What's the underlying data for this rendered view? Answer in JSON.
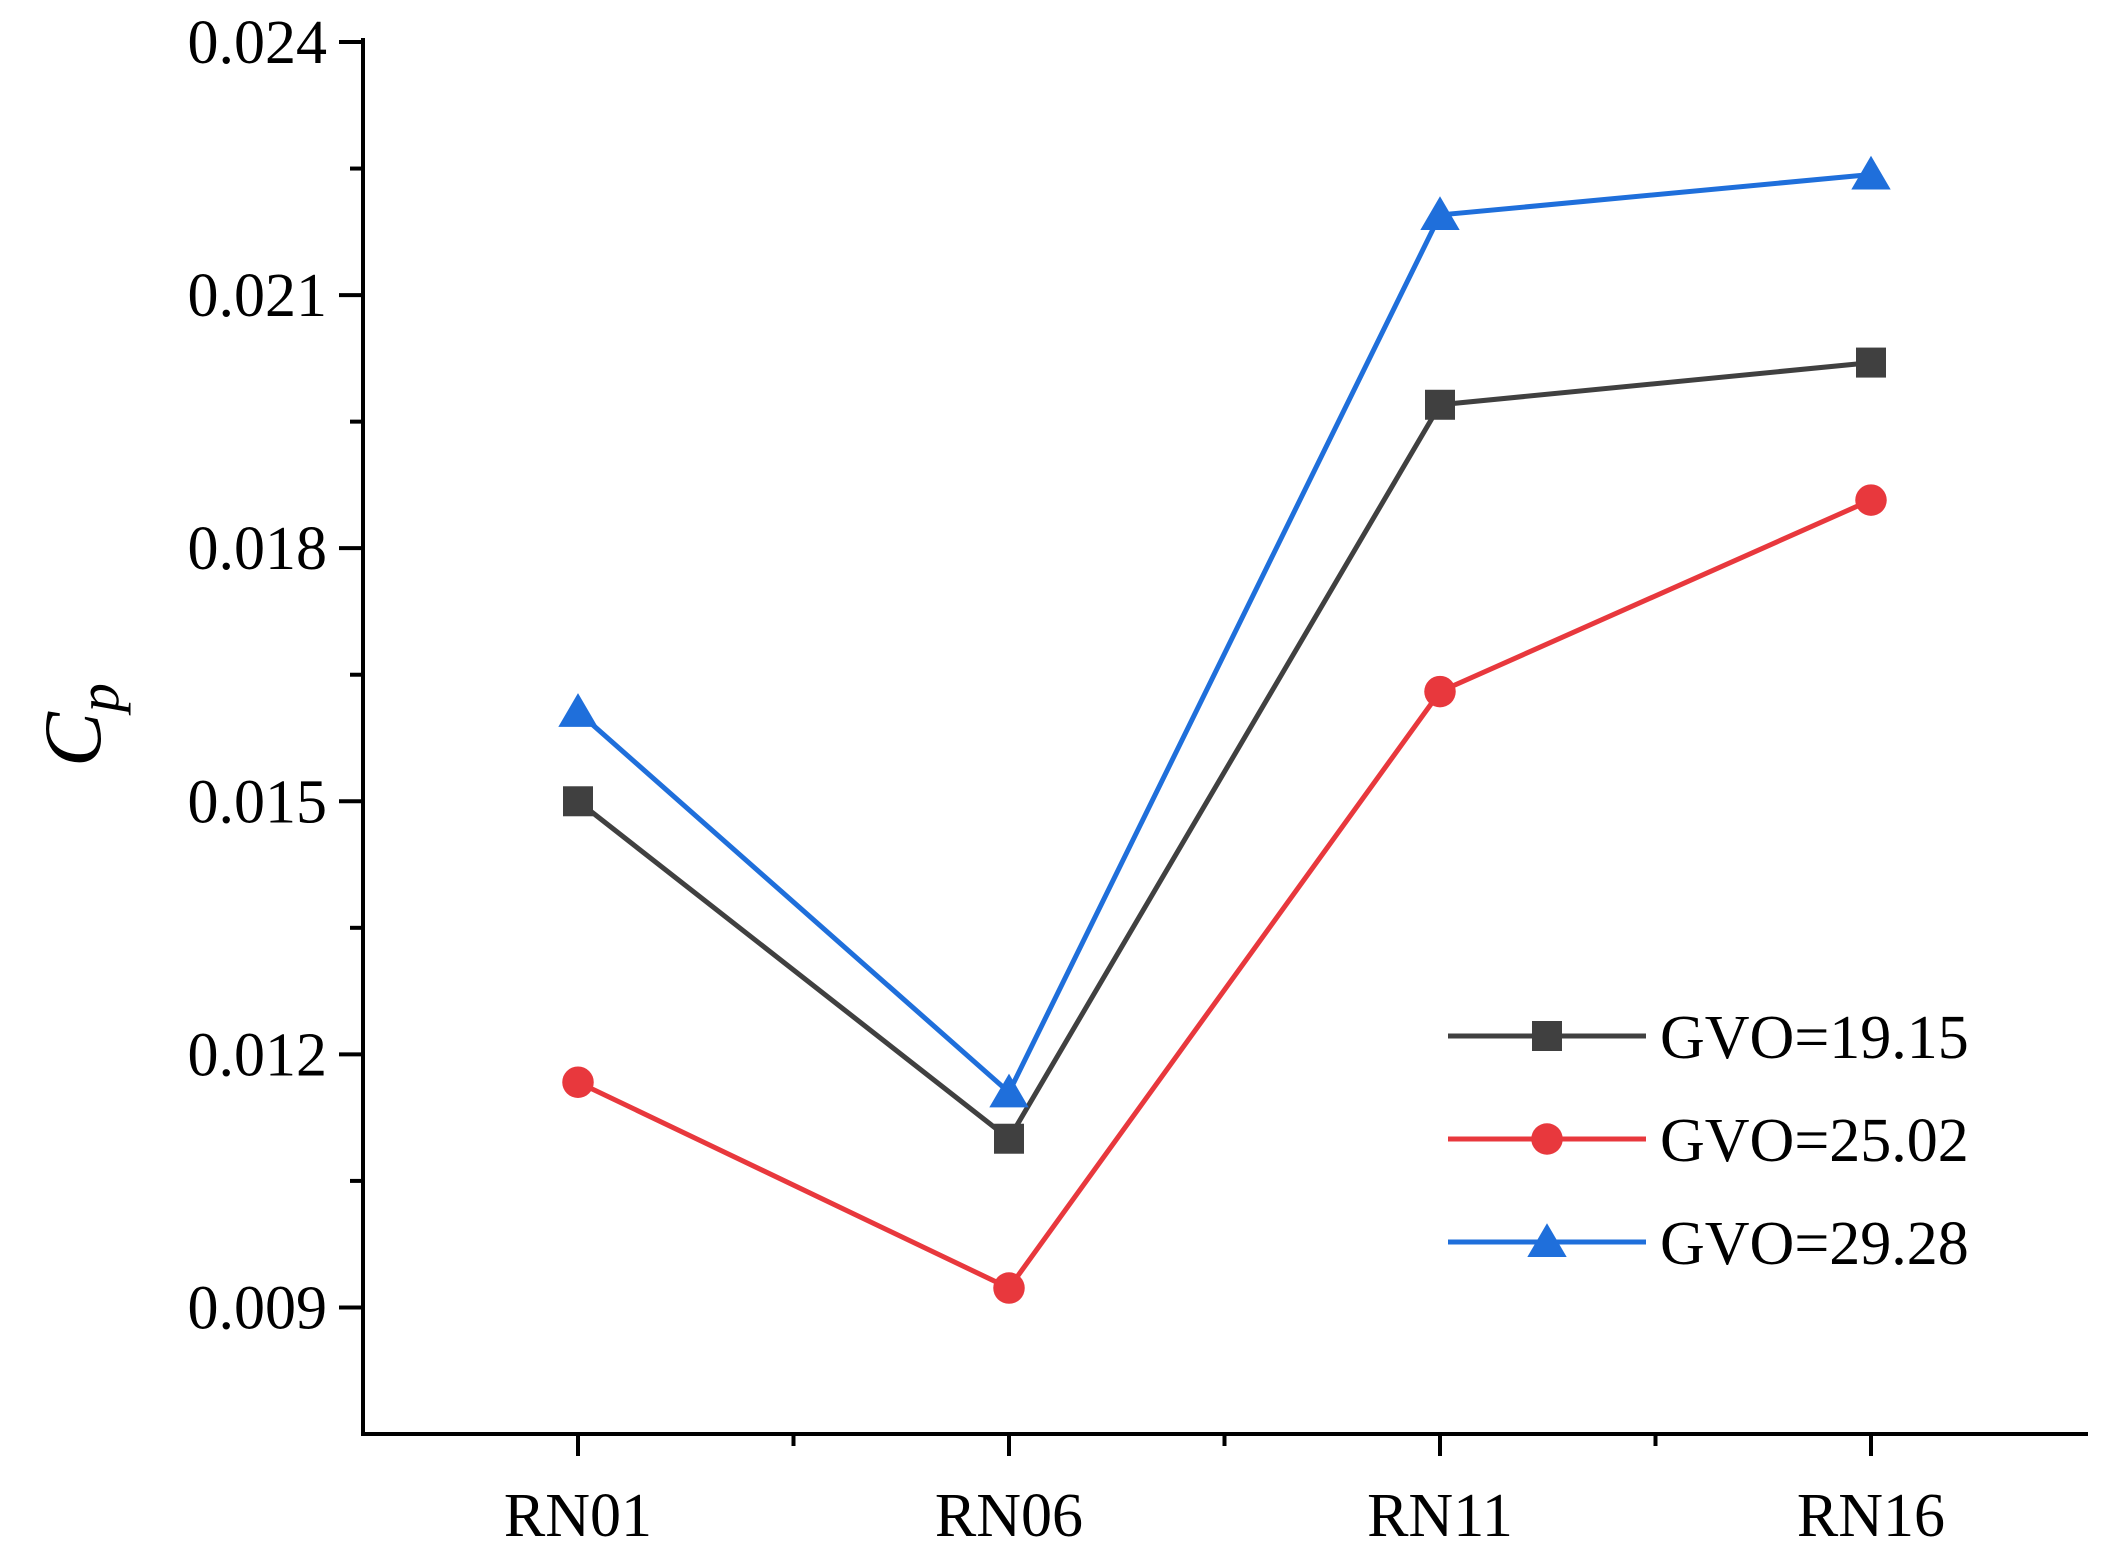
{
  "chart_data": {
    "type": "line",
    "title": "",
    "xlabel": "",
    "ylabel": "C",
    "ylabel_subscript": "p",
    "categories": [
      "RN01",
      "RN06",
      "RN11",
      "RN16"
    ],
    "ylim": [
      0.0075,
      0.024
    ],
    "yticks": [
      0.009,
      0.012,
      0.015,
      0.018,
      0.021,
      0.024
    ],
    "ytick_labels": [
      "0.009",
      "0.012",
      "0.015",
      "0.018",
      "0.021",
      "0.024"
    ],
    "grid": false,
    "legend_position": "bottom-right",
    "series": [
      {
        "name": "GVO=19.15",
        "color": "#404040",
        "marker": "square",
        "values": [
          0.015,
          0.011,
          0.0197,
          0.0202
        ]
      },
      {
        "name": "GVO=25.02",
        "color": "#e8383d",
        "marker": "circle",
        "values": [
          0.01167,
          0.00923,
          0.0163,
          0.01857
        ]
      },
      {
        "name": "GVO=29.28",
        "color": "#1f6fdb",
        "marker": "triangle",
        "values": [
          0.01606,
          0.01155,
          0.02195,
          0.02243
        ]
      }
    ]
  }
}
